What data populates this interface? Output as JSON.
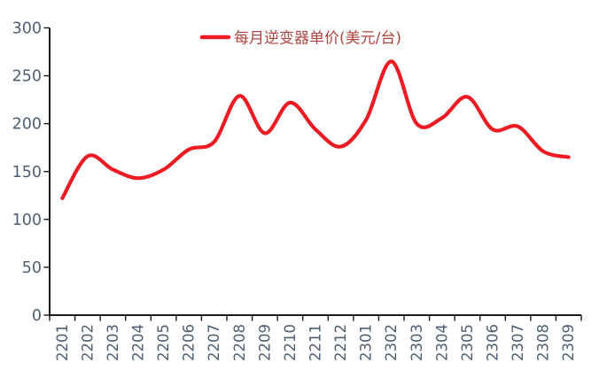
{
  "colors": {
    "series_line": "#ed1c24",
    "legend_text": "#ad4540",
    "axis_label": "#4e5f71",
    "axis_line": "#1a1a1a",
    "background": "#ffffff"
  },
  "legend": {
    "label": "每月逆变器单价(美元/台)"
  },
  "chart_data": {
    "type": "line",
    "smooth": true,
    "title": "",
    "xlabel": "",
    "ylabel": "",
    "categories": [
      "2201",
      "2202",
      "2203",
      "2204",
      "2205",
      "2206",
      "2207",
      "2208",
      "2209",
      "2210",
      "2211",
      "2212",
      "2301",
      "2302",
      "2303",
      "2304",
      "2305",
      "2306",
      "2307",
      "2308",
      "2309"
    ],
    "series": [
      {
        "name": "每月逆变器单价(美元/台)",
        "values": [
          122,
          166,
          152,
          143,
          152,
          173,
          181,
          229,
          190,
          222,
          194,
          176,
          204,
          265,
          200,
          206,
          228,
          194,
          197,
          171,
          165
        ]
      }
    ],
    "ylim": [
      0,
      300
    ],
    "y_ticks": [
      0,
      50,
      100,
      150,
      200,
      250,
      300
    ],
    "grid": false,
    "legend_position": "top-center",
    "x_labels_rotation_deg": -90
  }
}
